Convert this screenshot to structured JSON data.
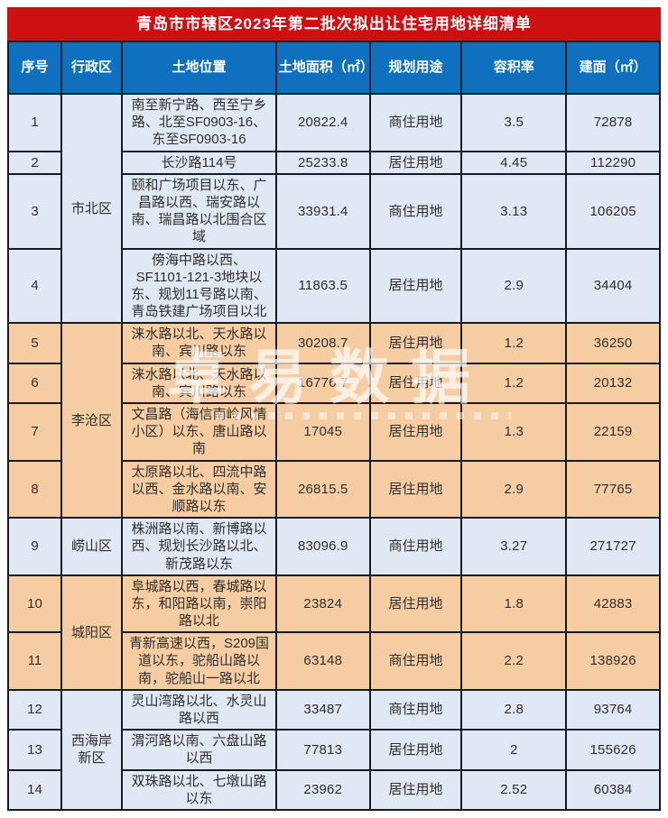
{
  "title": "青岛市市辖区2023年第二批次拟出让住宅用地详细清单",
  "watermark": {
    "text": "卓易数据"
  },
  "colors": {
    "title_bg": "#cd1012",
    "header_bg": "#0f70bf",
    "row_blue": "#e0e8f3",
    "row_peach": "#f6cda2",
    "border": "#151a24"
  },
  "chart_data": {
    "type": "table",
    "title": "青岛市市辖区2023年第二批次拟出让住宅用地详细清单",
    "columns": [
      "序号",
      "行政区",
      "土地位置",
      "土地面积（㎡）",
      "规划用途",
      "容积率",
      "建面（㎡）"
    ],
    "district_groups": [
      {
        "name": "市北区",
        "row_nos": "1-4"
      },
      {
        "name": "李沧区",
        "row_nos": "5-8"
      },
      {
        "name": "崂山区",
        "row_nos": "9"
      },
      {
        "name": "城阳区",
        "row_nos": "10-11"
      },
      {
        "name": "西海岸新区",
        "row_nos": "12-14"
      }
    ],
    "rows": [
      {
        "no": "1",
        "district": "市北区",
        "location": "南至新宁路、西至宁乡路、北至SF0903-16、东至SF0903-16",
        "area": "20822.4",
        "use": "商住用地",
        "far": "3.5",
        "gfa": "72878"
      },
      {
        "no": "2",
        "location": "长沙路114号",
        "area": "25233.8",
        "use": "居住用地",
        "far": "4.45",
        "gfa": "112290"
      },
      {
        "no": "3",
        "location": "颐和广场项目以东、广昌路以西、瑞安路以南、瑞昌路以北围合区域",
        "area": "33931.4",
        "use": "商住用地",
        "far": "3.13",
        "gfa": "106205"
      },
      {
        "no": "4",
        "location": "傍海中路以西、SF1101-121-3地块以东、规划11号路以南、青岛铁建广场项目以北",
        "area": "11863.5",
        "use": "居住用地",
        "far": "2.9",
        "gfa": "34404"
      },
      {
        "no": "5",
        "district": "李沧区",
        "location": "涞水路以北、天水路以南、宾川路以东",
        "area": "30208.7",
        "use": "居住用地",
        "far": "1.2",
        "gfa": "36250"
      },
      {
        "no": "6",
        "location": "涞水路以北、天水路以南、宾川路以东",
        "area": "16776.7",
        "use": "居住用地",
        "far": "1.2",
        "gfa": "20132"
      },
      {
        "no": "7",
        "location": "文昌路（海信南岭风情小区）以东、唐山路以南",
        "area": "17045",
        "use": "居住用地",
        "far": "1.3",
        "gfa": "22159"
      },
      {
        "no": "8",
        "location": "太原路以北、四流中路以西、金水路以南、安顺路以东",
        "area": "26815.5",
        "use": "居住用地",
        "far": "2.9",
        "gfa": "77765"
      },
      {
        "no": "9",
        "district": "崂山区",
        "location": "株洲路以南、新博路以西、规划长沙路以北、新茂路以东",
        "area": "83096.9",
        "use": "商住用地",
        "far": "3.27",
        "gfa": "271727"
      },
      {
        "no": "10",
        "district": "城阳区",
        "location": "阜城路以西，春城路以东，和阳路以南，崇阳路以北",
        "area": "23824",
        "use": "居住用地",
        "far": "1.8",
        "gfa": "42883"
      },
      {
        "no": "11",
        "location": "青新高速以西，S209国道以东，驼船山路以南，驼船山一路以北",
        "area": "63148",
        "use": "商住用地",
        "far": "2.2",
        "gfa": "138926"
      },
      {
        "no": "12",
        "district": "西海岸新区",
        "location": "灵山湾路以北、水灵山路以西",
        "area": "33487",
        "use": "商住用地",
        "far": "2.8",
        "gfa": "93764"
      },
      {
        "no": "13",
        "location": "渭河路以南、六盘山路以西",
        "area": "77813",
        "use": "居住用地",
        "far": "2",
        "gfa": "155626"
      },
      {
        "no": "14",
        "location": "双珠路以北、七墩山路以东",
        "area": "23962",
        "use": "居住用地",
        "far": "2.52",
        "gfa": "60384"
      }
    ]
  }
}
